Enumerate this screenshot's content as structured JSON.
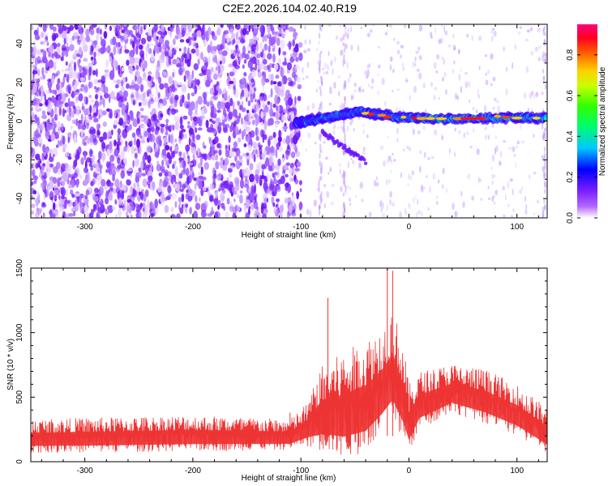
{
  "title": "C2E2.2026.104.02.40.R19",
  "chart_data": [
    {
      "type": "heatmap",
      "name": "spectrogram",
      "xlabel": "Height of straight line (km)",
      "ylabel": "Frequency (Hz)",
      "xlim": [
        -350,
        128
      ],
      "ylim": [
        -50,
        50
      ],
      "xticks": [
        -300,
        -200,
        -100,
        0,
        100
      ],
      "xtick_labels": [
        "-300",
        "-200",
        "-100",
        "0",
        "100"
      ],
      "yticks": [
        -40,
        -20,
        0,
        20,
        40
      ],
      "ytick_labels": [
        "-40",
        "-20",
        "0",
        "20",
        "40"
      ],
      "colorbar": {
        "label": "Normalized spectral amplitude",
        "range": [
          0,
          0.95
        ],
        "ticks": [
          0.0,
          0.2,
          0.4,
          0.6,
          0.8
        ],
        "tick_labels": [
          "0.0",
          "0.2",
          "0.4",
          "0.6",
          "0.8"
        ],
        "colors": [
          "#ffffff",
          "#8a2be2",
          "#0000ff",
          "#00e5ff",
          "#00ff00",
          "#ffff00",
          "#ff8000",
          "#ff0000",
          "#ff0080"
        ]
      },
      "features": {
        "noise_region_km": [
          -350,
          -100
        ],
        "signal_band_km": [
          -105,
          128
        ],
        "signal_band_freq_hz": [
          0,
          4
        ],
        "secondary_branch_km": [
          -80,
          -40
        ],
        "secondary_branch_freq_hz": [
          -10,
          -20
        ]
      }
    },
    {
      "type": "line",
      "name": "snr",
      "xlabel": "Height of straight line (km)",
      "ylabel": "SNR (10 * v/v)",
      "xlim": [
        -350,
        128
      ],
      "ylim": [
        0,
        1500
      ],
      "xticks": [
        -300,
        -200,
        -100,
        0,
        100
      ],
      "xtick_labels": [
        "-300",
        "-200",
        "-100",
        "0",
        "100"
      ],
      "yticks": [
        0,
        500,
        1000,
        1500
      ],
      "ytick_labels": [
        "0",
        "500",
        "1000",
        "1500"
      ],
      "color": "#ee3333",
      "envelope": [
        {
          "x": -350,
          "low": 70,
          "high": 330
        },
        {
          "x": -300,
          "low": 70,
          "high": 340
        },
        {
          "x": -200,
          "low": 80,
          "high": 360
        },
        {
          "x": -110,
          "low": 90,
          "high": 330
        },
        {
          "x": -95,
          "low": 120,
          "high": 450
        },
        {
          "x": -80,
          "low": 80,
          "high": 750
        },
        {
          "x": -60,
          "low": 30,
          "high": 850
        },
        {
          "x": -40,
          "low": 60,
          "high": 950
        },
        {
          "x": -25,
          "low": 200,
          "high": 1050
        },
        {
          "x": -15,
          "low": 300,
          "high": 1200
        },
        {
          "x": -5,
          "low": 150,
          "high": 900
        },
        {
          "x": 0,
          "low": 60,
          "high": 600
        },
        {
          "x": 10,
          "low": 250,
          "high": 700
        },
        {
          "x": 40,
          "low": 380,
          "high": 760
        },
        {
          "x": 70,
          "low": 300,
          "high": 720
        },
        {
          "x": 100,
          "low": 200,
          "high": 600
        },
        {
          "x": 128,
          "low": 60,
          "high": 420
        }
      ],
      "peaks": [
        {
          "x": -75,
          "y": 1270
        },
        {
          "x": -20,
          "y": 1500
        },
        {
          "x": -15,
          "y": 1480
        },
        {
          "x": -110,
          "y": 380
        }
      ]
    }
  ]
}
